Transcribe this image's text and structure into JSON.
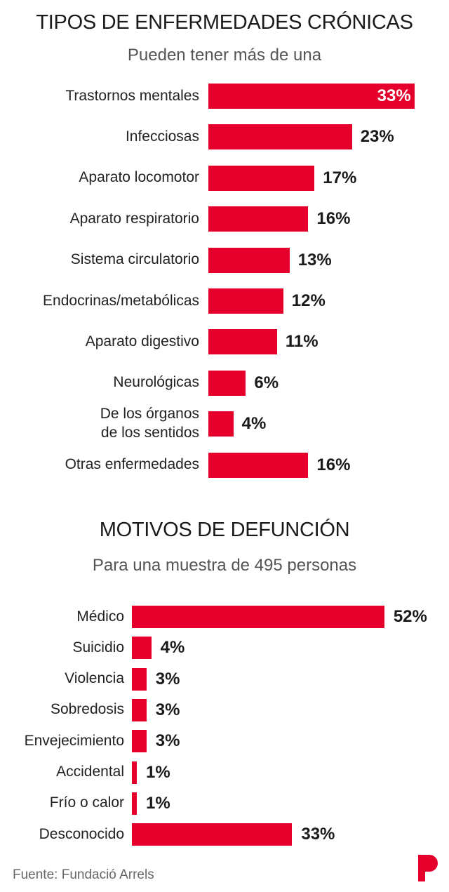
{
  "colors": {
    "bar": "#e4002b",
    "text": "#1a1a1a"
  },
  "chart_data": [
    {
      "type": "bar",
      "orientation": "horizontal",
      "title": "TIPOS DE ENFERMEDADES CRÓNICAS",
      "subtitle": "Pueden tener más de una",
      "categories": [
        "Trastornos mentales",
        "Infecciosas",
        "Aparato locomotor",
        "Aparato respiratorio",
        "Sistema circulatorio",
        "Endocrinas/metabólicas",
        "Aparato digestivo",
        "Neurológicas",
        "De los órganos\nde los sentidos",
        "Otras enfermedades"
      ],
      "values": [
        33,
        23,
        17,
        16,
        13,
        12,
        11,
        6,
        4,
        16
      ],
      "value_labels": [
        "33%",
        "23%",
        "17%",
        "16%",
        "13%",
        "12%",
        "11%",
        "6%",
        "4%",
        "16%"
      ],
      "unit": "%"
    },
    {
      "type": "bar",
      "orientation": "horizontal",
      "title": "MOTIVOS DE DEFUNCIÓN",
      "subtitle": "Para una muestra de 495 personas",
      "categories": [
        "Médico",
        "Suicidio",
        "Violencia",
        "Sobredosis",
        "Envejecimiento",
        "Accidental",
        "Frío o calor",
        "Desconocido"
      ],
      "values": [
        52,
        4,
        3,
        3,
        3,
        1,
        1,
        33
      ],
      "value_labels": [
        "52%",
        "4%",
        "3%",
        "3%",
        "3%",
        "1%",
        "1%",
        "33%"
      ],
      "unit": "%"
    }
  ],
  "source": "Fuente: Fundació Arrels",
  "logo": "P"
}
